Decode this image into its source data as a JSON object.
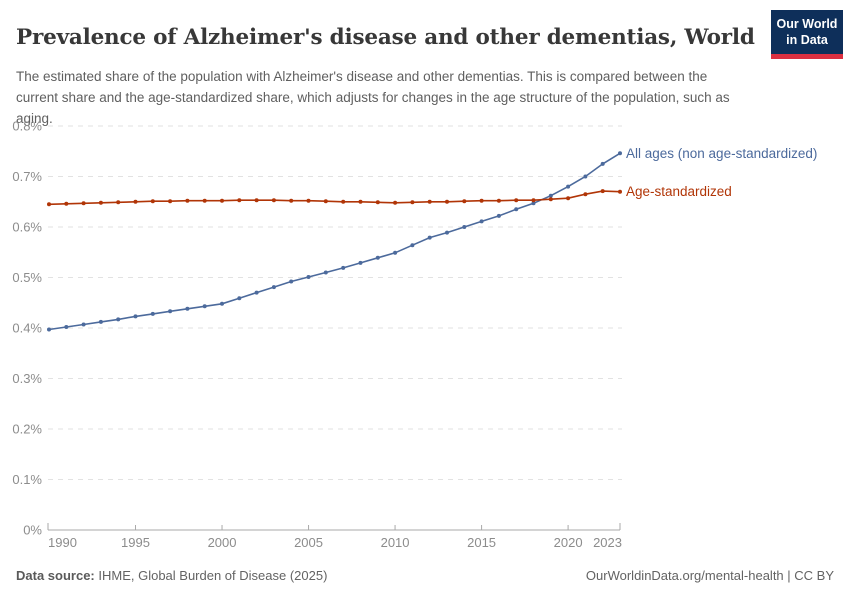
{
  "header": {
    "title": "Prevalence of Alzheimer's disease and other dementias, World",
    "subtitle": "The estimated share of the population with Alzheimer's disease and other dementias. This is compared between the current share and the age-standardized share, which adjusts for changes in the age structure of the population, such as aging.",
    "logo": {
      "line1": "Our World",
      "line2": "in Data",
      "bg_color": "#0e2f5a",
      "bar_color": "#dc2f40"
    }
  },
  "footer": {
    "source_label": "Data source:",
    "source_text": " IHME, Global Burden of Disease (2025)",
    "link_text": "OurWorldinData.org/mental-health | CC BY"
  },
  "chart_data": {
    "type": "line",
    "title": "Prevalence of Alzheimer's disease and other dementias, World",
    "xlabel": "",
    "ylabel": "",
    "grid": "horizontal-dashed",
    "legend_position": "right-of-line-end",
    "xlim": [
      1990,
      2023
    ],
    "ylim": [
      0,
      0.8
    ],
    "x": [
      1990,
      1991,
      1992,
      1993,
      1994,
      1995,
      1996,
      1997,
      1998,
      1999,
      2000,
      2001,
      2002,
      2003,
      2004,
      2005,
      2006,
      2007,
      2008,
      2009,
      2010,
      2011,
      2012,
      2013,
      2014,
      2015,
      2016,
      2017,
      2018,
      2019,
      2020,
      2021,
      2022,
      2023
    ],
    "xticks": [
      1990,
      1995,
      2000,
      2005,
      2010,
      2015,
      2020,
      2023
    ],
    "yticks": [
      {
        "value": 0,
        "label": "0%"
      },
      {
        "value": 0.1,
        "label": "0.1%"
      },
      {
        "value": 0.2,
        "label": "0.2%"
      },
      {
        "value": 0.3,
        "label": "0.3%"
      },
      {
        "value": 0.4,
        "label": "0.4%"
      },
      {
        "value": 0.5,
        "label": "0.5%"
      },
      {
        "value": 0.6,
        "label": "0.6%"
      },
      {
        "value": 0.7,
        "label": "0.7%"
      },
      {
        "value": 0.8,
        "label": "0.8%"
      }
    ],
    "unit": "%",
    "series": [
      {
        "id": "all-ages",
        "name": "All ages (non age-standardized)",
        "color": "#4c6a9c",
        "values": [
          0.397,
          0.402,
          0.407,
          0.412,
          0.417,
          0.423,
          0.428,
          0.433,
          0.438,
          0.443,
          0.448,
          0.459,
          0.47,
          0.481,
          0.492,
          0.501,
          0.51,
          0.519,
          0.529,
          0.539,
          0.549,
          0.564,
          0.579,
          0.589,
          0.6,
          0.611,
          0.622,
          0.635,
          0.647,
          0.662,
          0.68,
          0.7,
          0.725,
          0.746
        ]
      },
      {
        "id": "age-standardized",
        "name": "Age-standardized",
        "color": "#b13507",
        "values": [
          0.645,
          0.646,
          0.647,
          0.648,
          0.649,
          0.65,
          0.651,
          0.651,
          0.652,
          0.652,
          0.652,
          0.653,
          0.653,
          0.653,
          0.652,
          0.652,
          0.651,
          0.65,
          0.65,
          0.649,
          0.648,
          0.649,
          0.65,
          0.65,
          0.651,
          0.652,
          0.652,
          0.653,
          0.653,
          0.655,
          0.657,
          0.665,
          0.671,
          0.67
        ]
      }
    ]
  }
}
